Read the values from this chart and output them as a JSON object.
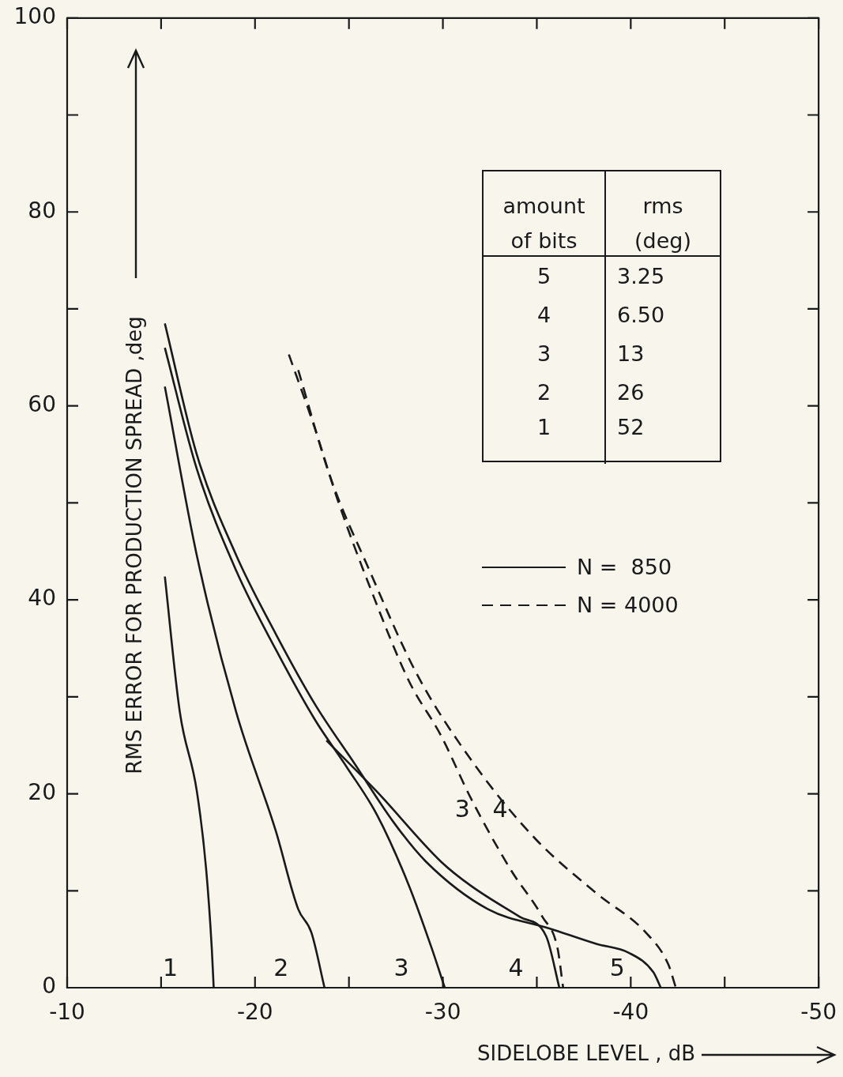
{
  "chart_data": {
    "type": "line",
    "xlabel": "SIDELOBE LEVEL , dB",
    "ylabel": "RMS ERROR FOR PRODUCTION SPREAD ,deg",
    "xlim": [
      -10,
      -50
    ],
    "ylim": [
      0,
      100
    ],
    "xticks": [
      -10,
      {
        "value": -15,
        "label": null
      },
      -20,
      {
        "value": -25,
        "label": null
      },
      -30,
      {
        "value": -35,
        "label": null
      },
      -40,
      {
        "value": -45,
        "label": null
      },
      -50
    ],
    "yticks": [
      0,
      {
        "value": 10,
        "label": null
      },
      20,
      {
        "value": 30,
        "label": null
      },
      40,
      {
        "value": 50,
        "label": null
      },
      60,
      {
        "value": 70,
        "label": null
      },
      80,
      {
        "value": 90,
        "label": null
      },
      100
    ],
    "grid": false,
    "legend": false,
    "marker": "none",
    "series": [
      {
        "name": "1",
        "color": "#1a1a1a",
        "line_style": "solid",
        "x": [
          -15.2,
          -16.0,
          -16.9,
          -17.4,
          -17.7,
          -17.8
        ],
        "values": [
          42.4,
          28.4,
          20.3,
          12.2,
          4,
          0
        ]
      },
      {
        "name": "2",
        "color": "#1a1a1a",
        "line_style": "solid",
        "x": [
          -15.2,
          -16.9,
          -19.0,
          -21.1,
          -22.3,
          -23.0,
          -23.7
        ],
        "values": [
          62,
          44.6,
          28.4,
          16.2,
          8.1,
          5.7,
          0
        ]
      },
      {
        "name": "3",
        "color": "#1a1a1a",
        "line_style": "solid",
        "x": [
          -15.2,
          -16.9,
          -19.0,
          -21.1,
          -23.2,
          -24.9,
          -26.5,
          -28.2,
          -29.4,
          -30.1
        ],
        "values": [
          66,
          53.5,
          43,
          34.9,
          27.6,
          22.7,
          17.8,
          10.5,
          4.1,
          0
        ]
      },
      {
        "name": "4",
        "color": "#1a1a1a",
        "line_style": "solid",
        "x": [
          -23.8,
          -26.5,
          -29.9,
          -31.5,
          -34.1,
          -35.5,
          -36.2
        ],
        "values": [
          25.5,
          20.2,
          13,
          10.5,
          7.3,
          5.3,
          0
        ]
      },
      {
        "name": "5",
        "color": "#1a1a1a",
        "line_style": "solid",
        "x": [
          -15.2,
          -16.9,
          -19.0,
          -21.1,
          -23.2,
          -25.3,
          -27.4,
          -29.1,
          -32.4,
          -35.7,
          -38.2,
          -39.9,
          -41.2,
          -41.6
        ],
        "values": [
          68.5,
          55,
          44.6,
          36.5,
          29.2,
          23.1,
          17,
          13,
          8.1,
          6.1,
          4.5,
          3.6,
          1.6,
          0
        ]
      },
      {
        "name": "3",
        "color": "#1a1a1a",
        "line_style": "dashed",
        "x": [
          -21.8,
          -23.2,
          -24.4,
          -26.1,
          -28.2,
          -29.9,
          -31.5,
          -33.6,
          -35.3,
          -36.1,
          -36.4
        ],
        "values": [
          65.3,
          57.6,
          50.3,
          41.4,
          31.6,
          26,
          19.5,
          12.2,
          7.3,
          4.1,
          0
        ]
      },
      {
        "name": "4",
        "color": "#1a1a1a",
        "line_style": "dashed",
        "x": [
          -22.3,
          -24.0,
          -26.1,
          -28.6,
          -31.5,
          -34.9,
          -38.2,
          -40.8,
          -42.0,
          -42.4
        ],
        "values": [
          63.7,
          52.7,
          43,
          32.4,
          23.5,
          15.4,
          9.7,
          5.7,
          2.4,
          0
        ]
      }
    ],
    "annotations": [
      "amount of bits",
      "rms (deg)",
      "5",
      "3.25",
      "4",
      "6.50",
      "3",
      "13",
      "2",
      "26",
      "1",
      "52",
      "N =  850",
      "N = 4000"
    ]
  }
}
